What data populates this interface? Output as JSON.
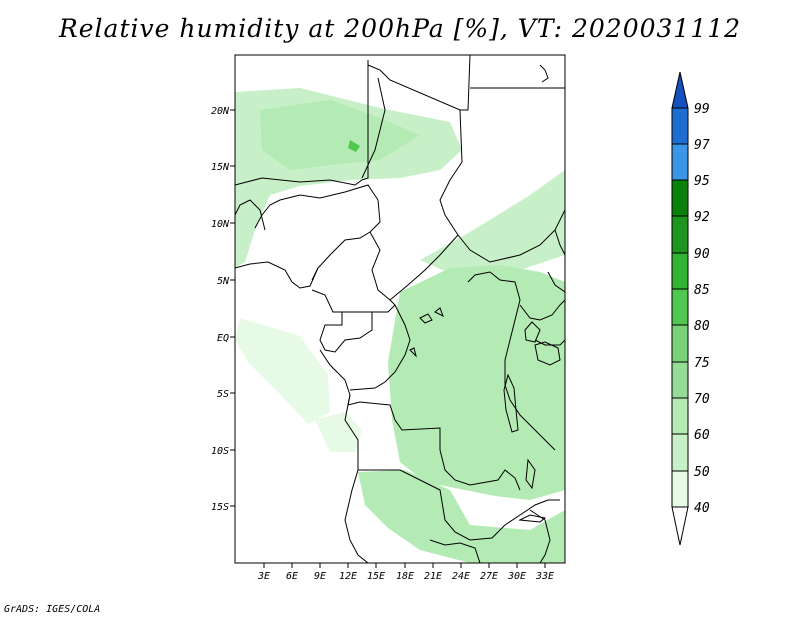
{
  "title": "Relative humidity at 200hPa [%], VT: 2020031112",
  "credit": "GrADS: IGES/COLA",
  "map": {
    "lat_labels": [
      "20N",
      "15N",
      "10N",
      "5N",
      "EQ",
      "5S",
      "10S",
      "15S"
    ],
    "lon_labels": [
      "3E",
      "6E",
      "9E",
      "12E",
      "15E",
      "18E",
      "21E",
      "24E",
      "27E",
      "30E",
      "33E"
    ]
  },
  "colorbar": {
    "levels": [
      "40",
      "50",
      "60",
      "70",
      "75",
      "80",
      "85",
      "90",
      "92",
      "95",
      "97",
      "99"
    ],
    "colors": [
      "#ffffff",
      "#e6fae6",
      "#c8f0c8",
      "#b4eab4",
      "#96dc96",
      "#78d278",
      "#50c850",
      "#32b432",
      "#1e961e",
      "#0a820a",
      "#3c96e6",
      "#1e6ed2",
      "#1450be"
    ]
  }
}
